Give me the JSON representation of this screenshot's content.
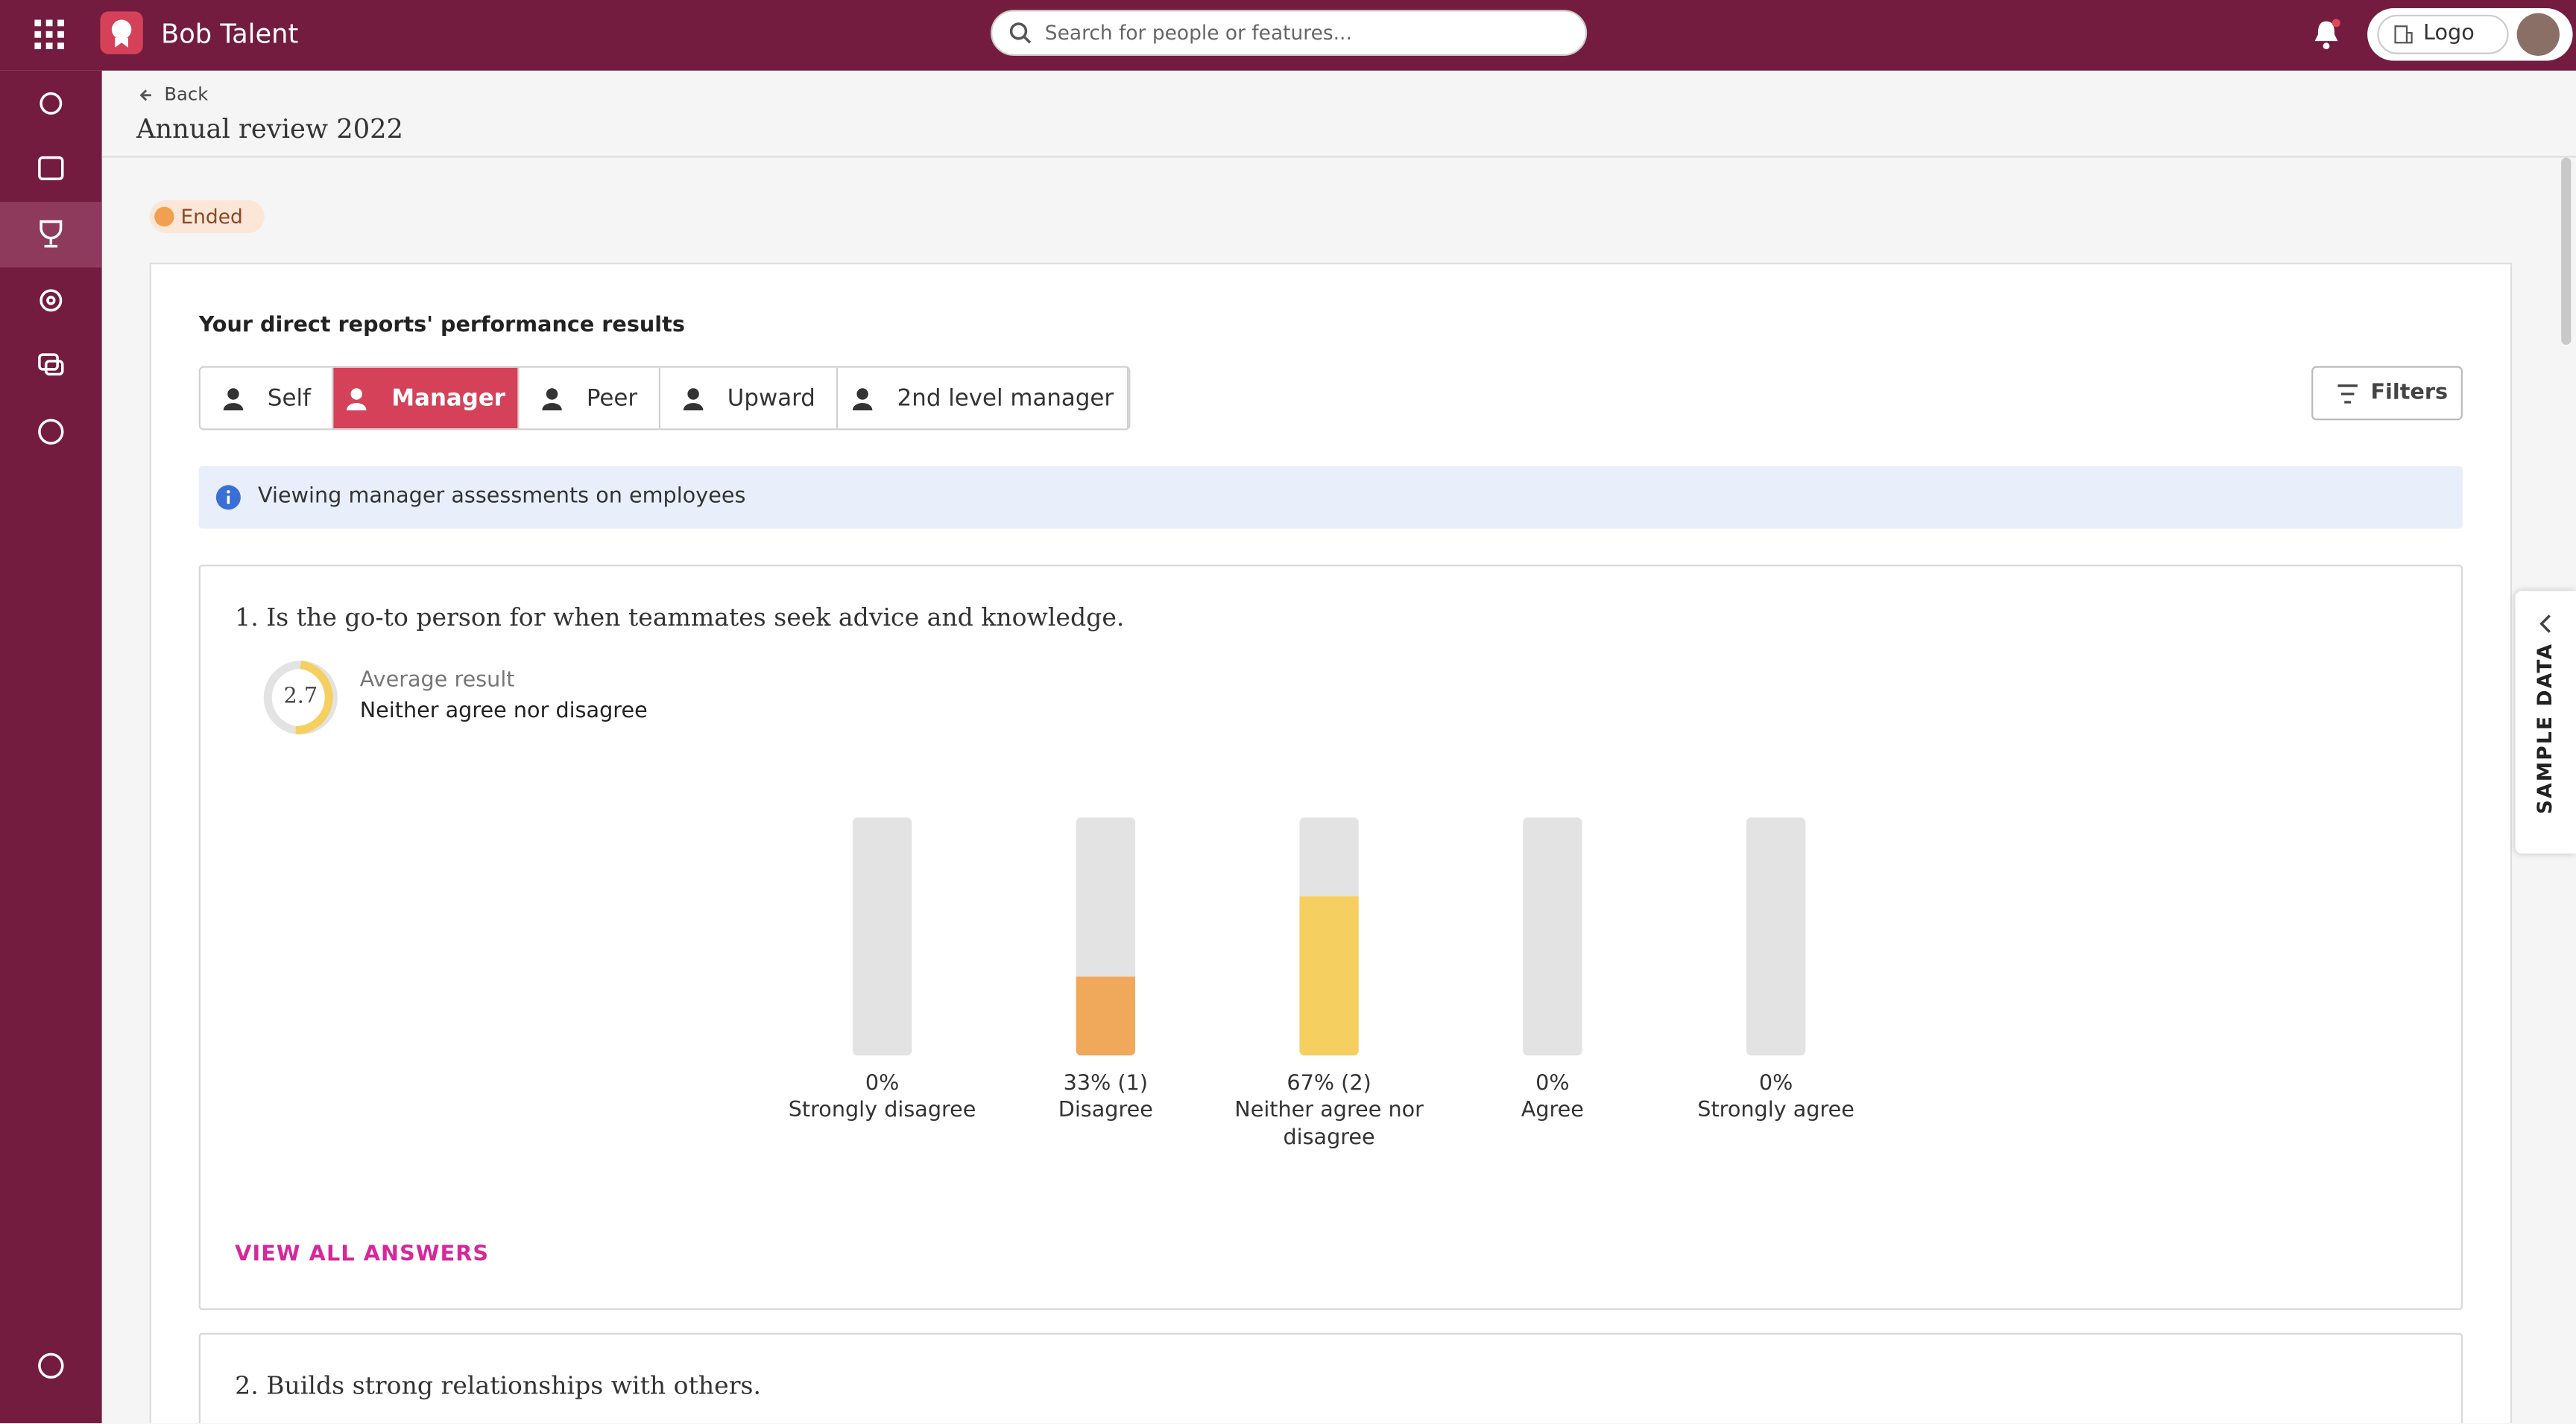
{
  "app": {
    "name": "Bob Talent",
    "search_placeholder": "Search for people or features...",
    "company": "Logo"
  },
  "header": {
    "back": "Back",
    "title": "Annual review 2022",
    "status": "Ended"
  },
  "section_title": "Your direct reports' performance results",
  "tabs": [
    "Self",
    "Manager",
    "Peer",
    "Upward",
    "2nd level manager"
  ],
  "active_tab": "Manager",
  "filters": "Filters",
  "info": "Viewing manager assessments on employees",
  "questions": [
    {
      "title": "1. Is the go-to person for when teammates seek advice and knowledge.",
      "average_label": "Average result",
      "average": 2.7,
      "average_text": "Neither agree nor disagree",
      "chart": {
        "type": "bar",
        "categories": [
          "Strongly disagree",
          "Disagree",
          "Neither agree nor disagree",
          "Agree",
          "Strongly agree"
        ],
        "values": [
          0,
          33,
          67,
          0,
          0
        ],
        "value_labels": [
          "0%",
          "33% (1)",
          "67% (2)",
          "0%",
          "0%"
        ],
        "colors": [
          "#e8826a",
          "#f0a95a",
          "#f5cf60",
          "#b5d56a",
          "#6cc08a"
        ],
        "ylim": [
          0,
          100
        ]
      },
      "link": "VIEW ALL ANSWERS"
    },
    {
      "title": "2. Builds strong relationships with others."
    }
  ],
  "side_tab": "SAMPLE DATA"
}
